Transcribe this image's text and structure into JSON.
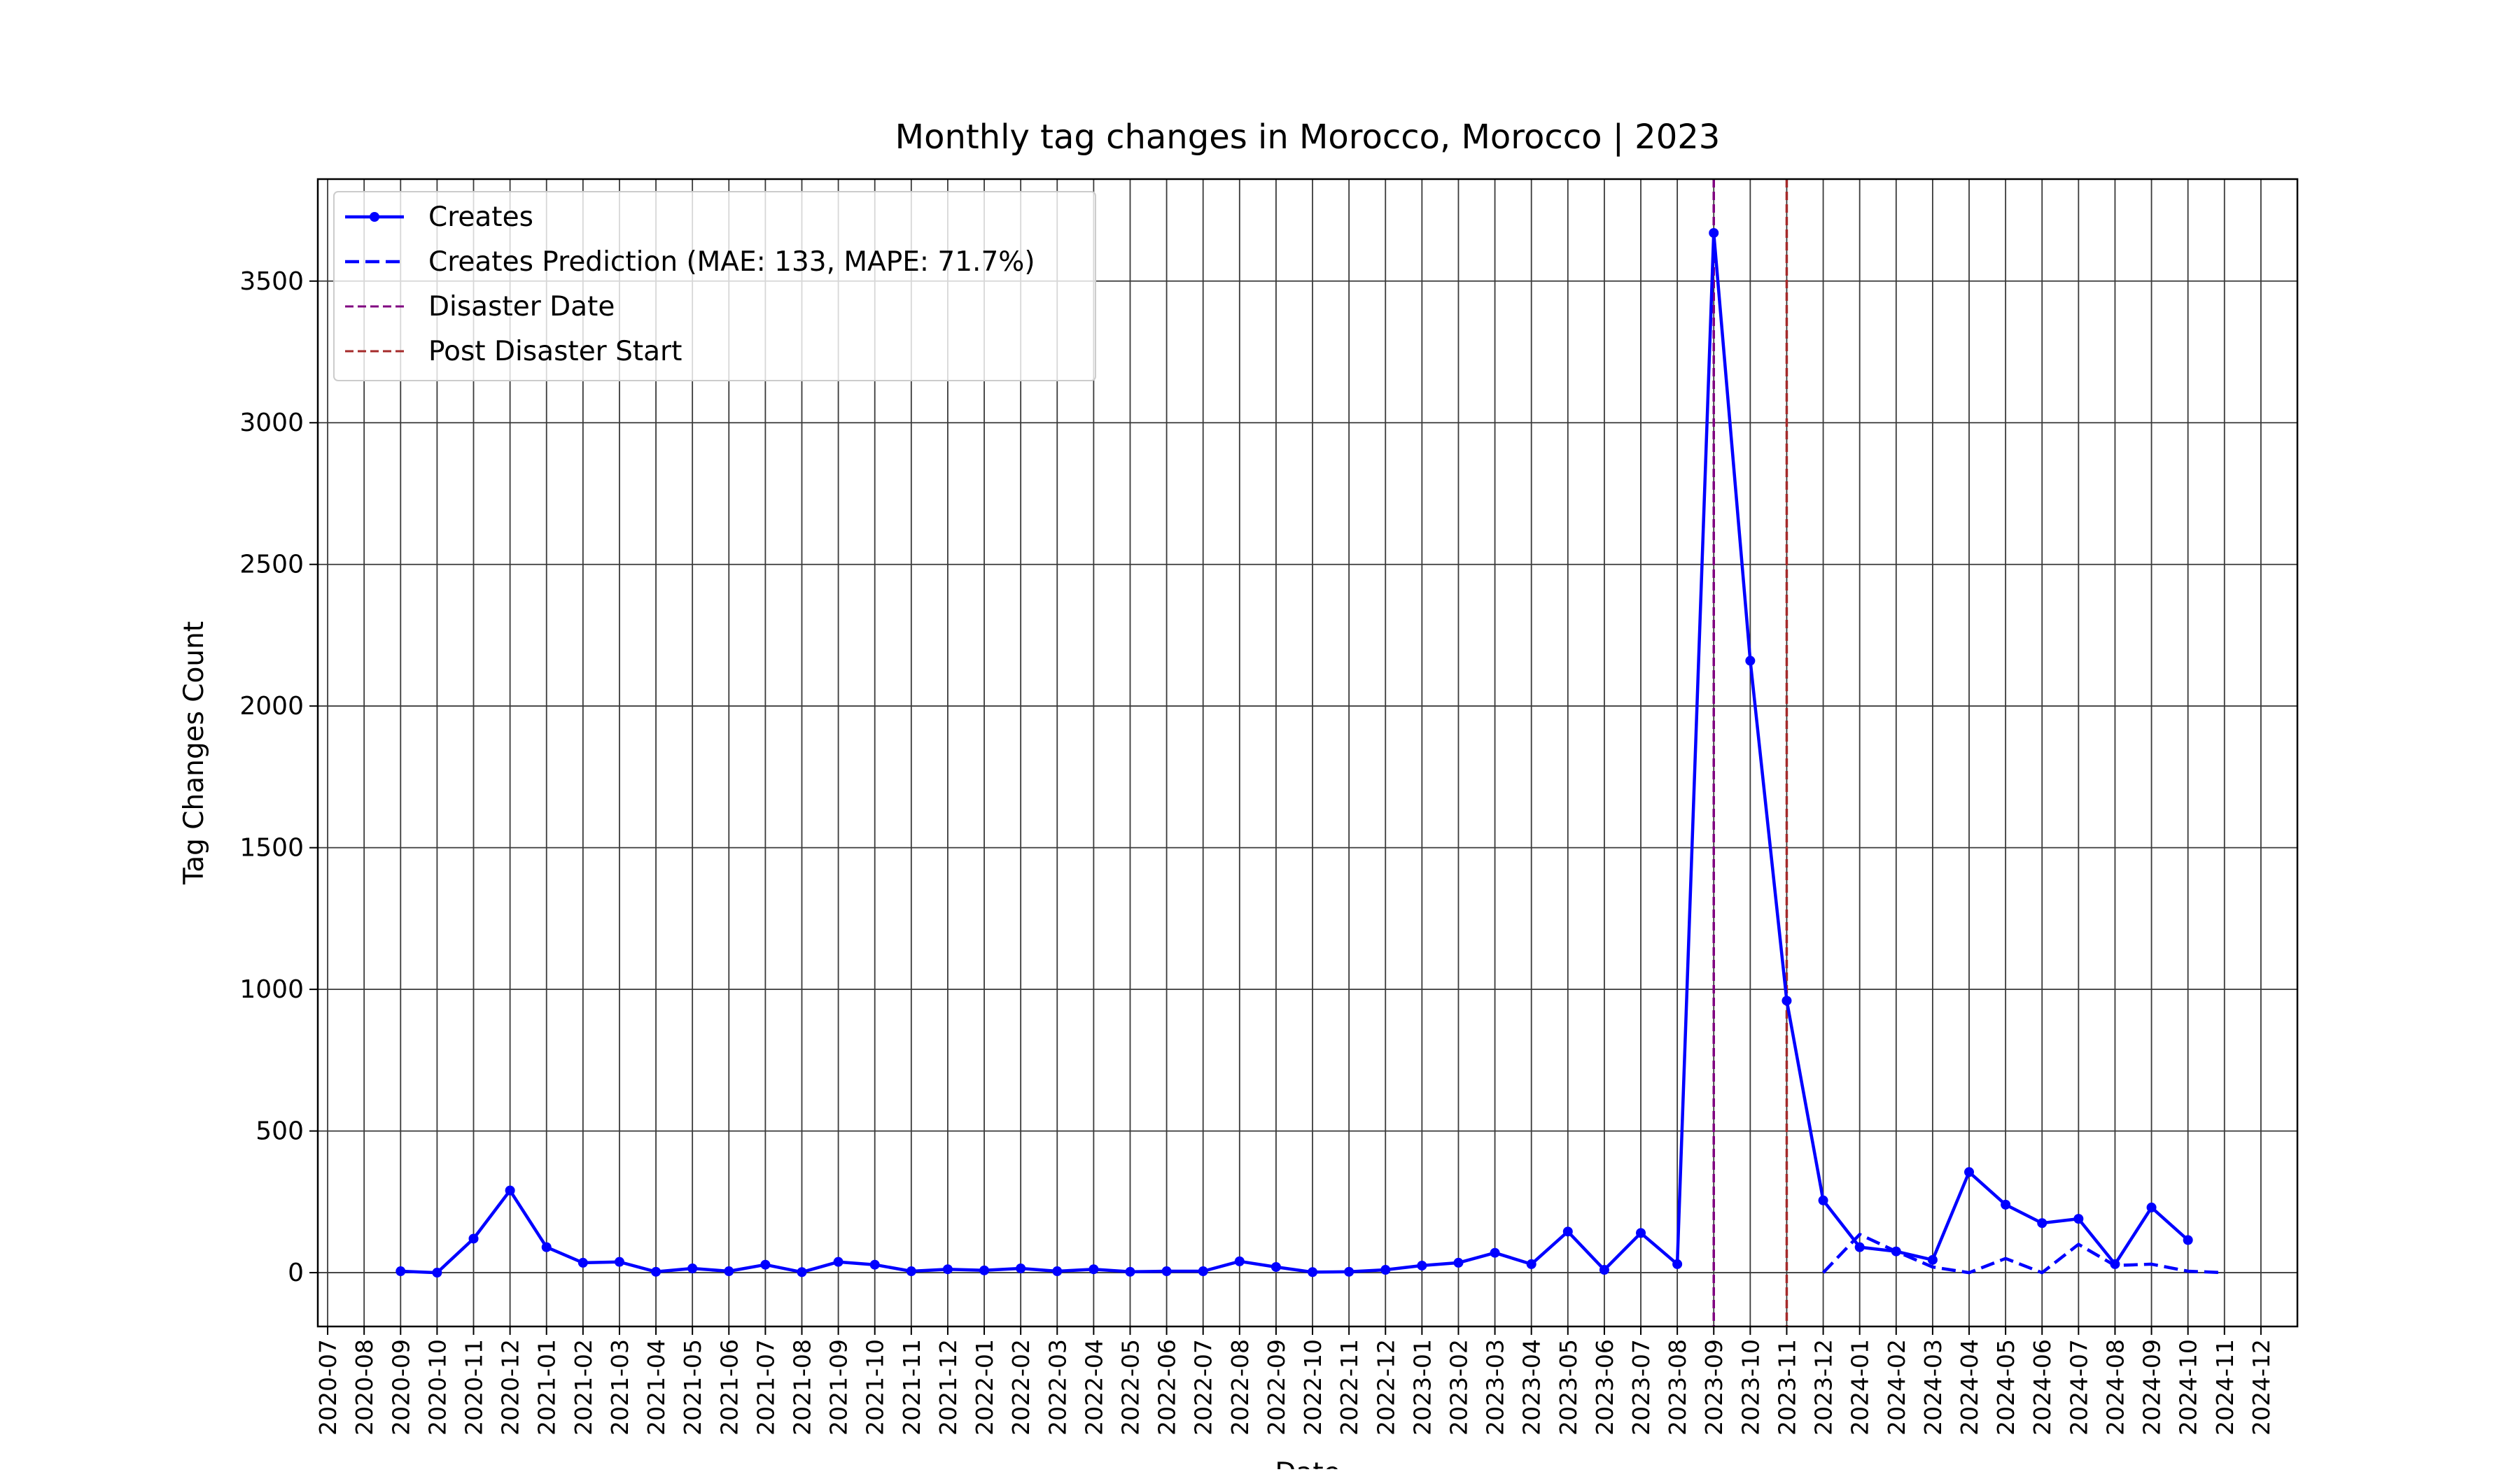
{
  "chart_data": {
    "type": "line",
    "title": "Monthly tag changes in Morocco, Morocco | 2023",
    "xlabel": "Date",
    "ylabel": "Tag Changes Count",
    "x": [
      "2020-09",
      "2020-10",
      "2020-11",
      "2020-12",
      "2021-01",
      "2021-02",
      "2021-03",
      "2021-04",
      "2021-05",
      "2021-06",
      "2021-07",
      "2021-08",
      "2021-09",
      "2021-10",
      "2021-11",
      "2021-12",
      "2022-01",
      "2022-02",
      "2022-03",
      "2022-04",
      "2022-05",
      "2022-06",
      "2022-07",
      "2022-08",
      "2022-09",
      "2022-10",
      "2022-11",
      "2022-12",
      "2023-01",
      "2023-02",
      "2023-03",
      "2023-04",
      "2023-05",
      "2023-06",
      "2023-07",
      "2023-08",
      "2023-09",
      "2023-10",
      "2023-11",
      "2023-12",
      "2024-01",
      "2024-02",
      "2024-03",
      "2024-04",
      "2024-05",
      "2024-06",
      "2024-07",
      "2024-08",
      "2024-09",
      "2024-10",
      "2024-11"
    ],
    "series": [
      {
        "name": "Creates",
        "color": "#0000ff",
        "style": "solid",
        "markers": true,
        "values": [
          5,
          0,
          120,
          290,
          90,
          35,
          38,
          3,
          15,
          5,
          28,
          2,
          38,
          28,
          5,
          12,
          8,
          15,
          5,
          12,
          3,
          5,
          5,
          40,
          20,
          2,
          3,
          10,
          25,
          35,
          70,
          30,
          145,
          10,
          140,
          30,
          3670,
          2160,
          960,
          255,
          90,
          75,
          45,
          355,
          240,
          175,
          190,
          30,
          230,
          115,
          null
        ]
      },
      {
        "name": "Creates Prediction (MAE: 133, MAPE: 71.7%)",
        "color": "#0000ff",
        "style": "dashed",
        "markers": false,
        "values": [
          null,
          null,
          null,
          null,
          null,
          null,
          null,
          null,
          null,
          null,
          null,
          null,
          null,
          null,
          null,
          null,
          null,
          null,
          null,
          null,
          null,
          null,
          null,
          null,
          null,
          null,
          null,
          null,
          null,
          null,
          null,
          null,
          null,
          null,
          null,
          null,
          null,
          null,
          null,
          0,
          135,
          75,
          20,
          0,
          50,
          0,
          100,
          25,
          30,
          5,
          0
        ]
      }
    ],
    "vlines": [
      {
        "name": "Disaster Date",
        "x": "2023-09",
        "color": "#800080"
      },
      {
        "name": "Post Disaster Start",
        "x": "2023-11",
        "color": "#a52a2a"
      }
    ],
    "xlim": [
      "2020-07",
      "2024-12"
    ],
    "xticks": [
      "2020-07",
      "2020-08",
      "2020-09",
      "2020-10",
      "2020-11",
      "2020-12",
      "2021-01",
      "2021-02",
      "2021-03",
      "2021-04",
      "2021-05",
      "2021-06",
      "2021-07",
      "2021-08",
      "2021-09",
      "2021-10",
      "2021-11",
      "2021-12",
      "2022-01",
      "2022-02",
      "2022-03",
      "2022-04",
      "2022-05",
      "2022-06",
      "2022-07",
      "2022-08",
      "2022-09",
      "2022-10",
      "2022-11",
      "2022-12",
      "2023-01",
      "2023-02",
      "2023-03",
      "2023-04",
      "2023-05",
      "2023-06",
      "2023-07",
      "2023-08",
      "2023-09",
      "2023-10",
      "2023-11",
      "2023-12",
      "2024-01",
      "2024-02",
      "2024-03",
      "2024-04",
      "2024-05",
      "2024-06",
      "2024-07",
      "2024-08",
      "2024-09",
      "2024-10",
      "2024-11",
      "2024-12"
    ],
    "ylim": [
      -190,
      3860
    ],
    "yticks": [
      0,
      500,
      1000,
      1500,
      2000,
      2500,
      3000,
      3500
    ],
    "grid": true,
    "legend": "upper left"
  }
}
